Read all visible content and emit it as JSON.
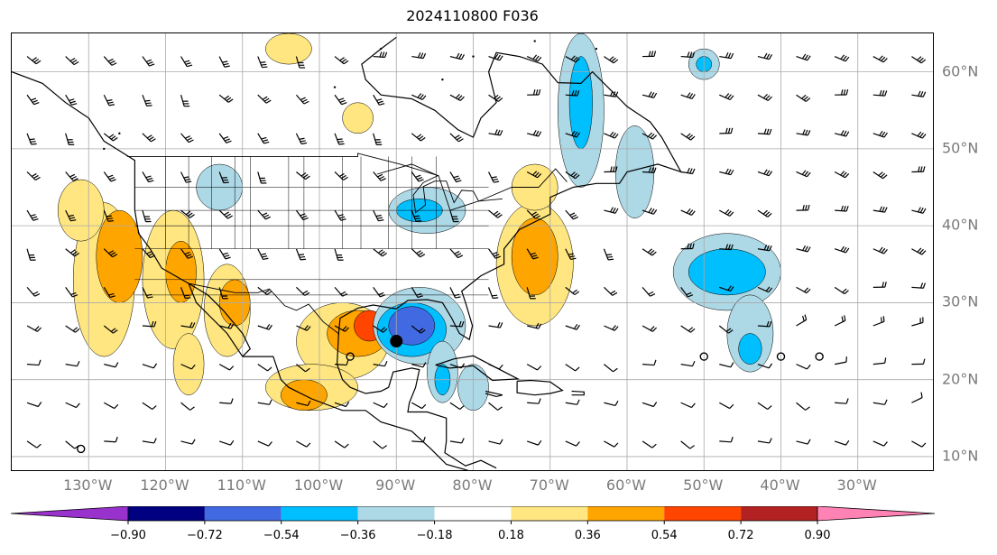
{
  "title": "2024110800 F036",
  "map": {
    "lon_min": -140,
    "lon_max": -20,
    "lat_min": 8,
    "lat_max": 65,
    "lon_labels": [
      {
        "lon": -130,
        "text": "130°W"
      },
      {
        "lon": -120,
        "text": "120°W"
      },
      {
        "lon": -110,
        "text": "110°W"
      },
      {
        "lon": -100,
        "text": "100°W"
      },
      {
        "lon": -90,
        "text": "90°W"
      },
      {
        "lon": -80,
        "text": "80°W"
      },
      {
        "lon": -70,
        "text": "70°W"
      },
      {
        "lon": -60,
        "text": "60°W"
      },
      {
        "lon": -50,
        "text": "50°W"
      },
      {
        "lon": -40,
        "text": "40°W"
      },
      {
        "lon": -30,
        "text": "30°W"
      }
    ],
    "lat_labels": [
      {
        "lat": 60,
        "text": "60°N"
      },
      {
        "lat": 50,
        "text": "50°N"
      },
      {
        "lat": 40,
        "text": "40°N"
      },
      {
        "lat": 30,
        "text": "30°N"
      },
      {
        "lat": 20,
        "text": "20°N"
      },
      {
        "lat": 10,
        "text": "10°N"
      }
    ],
    "gridlines": true,
    "storm_marker": {
      "lon": -90,
      "lat": 25
    },
    "colors": {
      "coastline": "#000000",
      "gridline": "#a9a9a9",
      "barb": "#000000"
    }
  },
  "colorbar": {
    "ticks": [
      "−0.90",
      "−0.72",
      "−0.54",
      "−0.36",
      "−0.18",
      "0.18",
      "0.36",
      "0.54",
      "0.72",
      "0.90"
    ],
    "colors": [
      "#9932cc",
      "#000080",
      "#4169e1",
      "#00bfff",
      "#add8e6",
      "#ffffff",
      "#ffe680",
      "#ffa500",
      "#ff4500",
      "#b22222",
      "#ff82b4"
    ]
  }
}
